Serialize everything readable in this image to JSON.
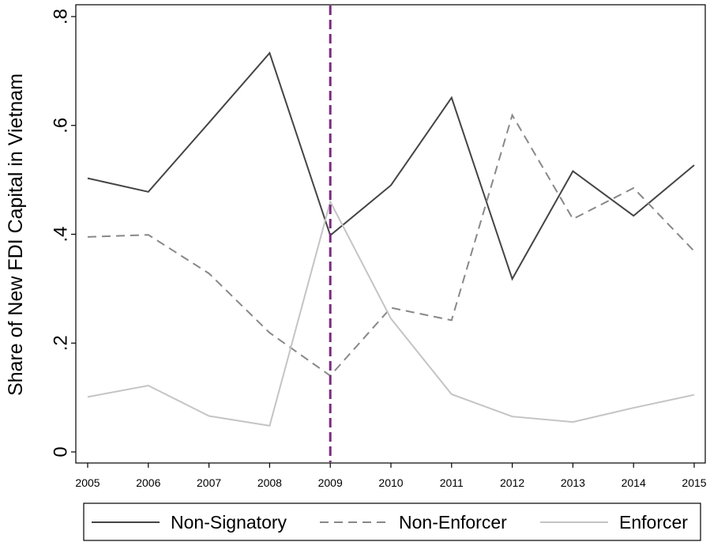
{
  "chart_data": {
    "type": "line",
    "ylabel": "Share of New FDI Capital in Vietnam",
    "xlabel": "",
    "x": [
      "2005",
      "2006",
      "2007",
      "2008",
      "2009",
      "2010",
      "2011",
      "2012",
      "2013",
      "2014",
      "2015"
    ],
    "xlim": [
      2005,
      2015
    ],
    "ylim": [
      0,
      0.8
    ],
    "yticks": [
      0,
      0.2,
      0.4,
      0.6,
      0.8
    ],
    "ytick_labels": [
      "0",
      ".2",
      ".4",
      ".6",
      ".8"
    ],
    "grid": false,
    "legend_position": "bottom",
    "reference_line": {
      "axis": "x",
      "value": 2009,
      "color": "#7b2a7f",
      "style": "dashed"
    },
    "series": [
      {
        "name": "Non-Signatory",
        "color": "#444444",
        "style": "solid",
        "values": [
          0.503,
          0.478,
          0.605,
          0.733,
          0.398,
          0.49,
          0.651,
          0.318,
          0.516,
          0.434,
          0.527
        ]
      },
      {
        "name": "Non-Enforcer",
        "color": "#888888",
        "style": "dashed",
        "values": [
          0.395,
          0.399,
          0.328,
          0.219,
          0.14,
          0.265,
          0.242,
          0.619,
          0.428,
          0.485,
          0.369
        ]
      },
      {
        "name": "Enforcer",
        "color": "#c4c4c4",
        "style": "solid",
        "values": [
          0.101,
          0.122,
          0.066,
          0.048,
          0.46,
          0.245,
          0.106,
          0.065,
          0.055,
          0.081,
          0.105
        ]
      }
    ]
  }
}
